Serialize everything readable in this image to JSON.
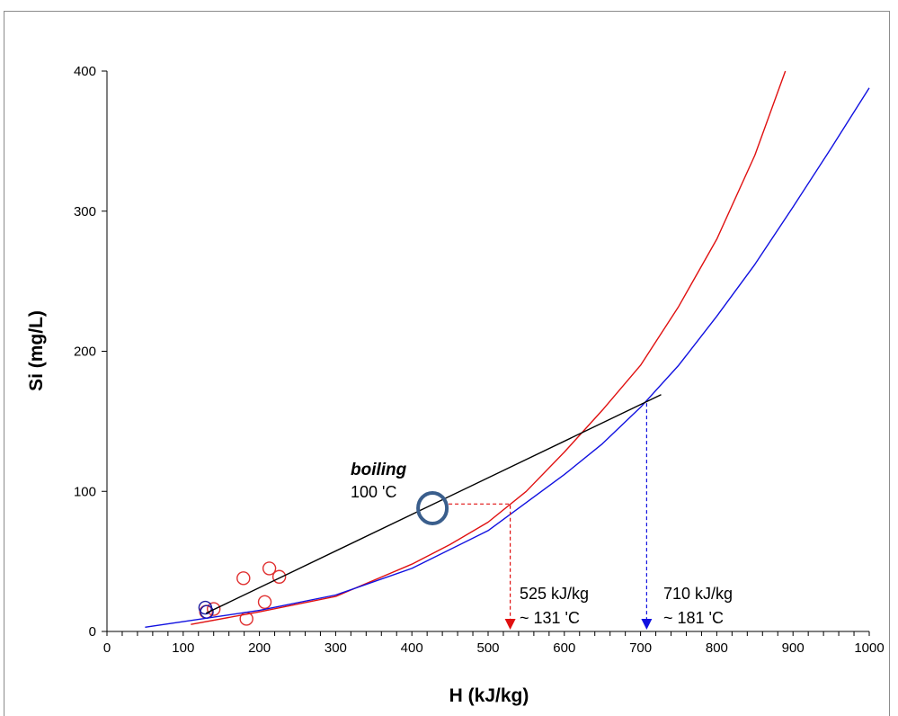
{
  "chart_data": {
    "type": "scatter",
    "xlabel": "H (kJ/kg)",
    "ylabel": "Si (mg/L)",
    "xlim": [
      0,
      1000
    ],
    "ylim": [
      0,
      400
    ],
    "xticks": [
      "0",
      "100",
      "200",
      "300",
      "400",
      "500",
      "600",
      "700",
      "800",
      "900",
      "1000"
    ],
    "yticks": [
      "0",
      "100",
      "200",
      "300",
      "400"
    ],
    "grid": false,
    "series": [
      {
        "kind": "points",
        "color": "#e03030",
        "points": [
          {
            "x": 130,
            "y": 14
          },
          {
            "x": 140,
            "y": 16
          },
          {
            "x": 179,
            "y": 38
          },
          {
            "x": 183,
            "y": 9
          },
          {
            "x": 207,
            "y": 21
          },
          {
            "x": 213,
            "y": 45
          },
          {
            "x": 226,
            "y": 39
          }
        ]
      },
      {
        "kind": "points",
        "color": "#1a1aa0",
        "points": [
          {
            "x": 129,
            "y": 17
          },
          {
            "x": 131,
            "y": 14
          }
        ]
      },
      {
        "kind": "line",
        "color": "#e01010",
        "points": [
          {
            "x": 110,
            "y": 5
          },
          {
            "x": 200,
            "y": 14
          },
          {
            "x": 300,
            "y": 25
          },
          {
            "x": 400,
            "y": 48
          },
          {
            "x": 450,
            "y": 62
          },
          {
            "x": 500,
            "y": 78
          },
          {
            "x": 550,
            "y": 100
          },
          {
            "x": 600,
            "y": 128
          },
          {
            "x": 650,
            "y": 158
          },
          {
            "x": 700,
            "y": 190
          },
          {
            "x": 750,
            "y": 232
          },
          {
            "x": 800,
            "y": 280
          },
          {
            "x": 850,
            "y": 340
          },
          {
            "x": 880,
            "y": 385
          },
          {
            "x": 890,
            "y": 400
          }
        ]
      },
      {
        "kind": "line",
        "color": "#1010e0",
        "points": [
          {
            "x": 50,
            "y": 3
          },
          {
            "x": 100,
            "y": 7
          },
          {
            "x": 200,
            "y": 15
          },
          {
            "x": 300,
            "y": 26
          },
          {
            "x": 400,
            "y": 45
          },
          {
            "x": 500,
            "y": 72
          },
          {
            "x": 600,
            "y": 112
          },
          {
            "x": 650,
            "y": 134
          },
          {
            "x": 700,
            "y": 160
          },
          {
            "x": 750,
            "y": 190
          },
          {
            "x": 800,
            "y": 225
          },
          {
            "x": 850,
            "y": 262
          },
          {
            "x": 900,
            "y": 303
          },
          {
            "x": 950,
            "y": 345
          },
          {
            "x": 1000,
            "y": 388
          }
        ]
      },
      {
        "kind": "line",
        "color": "#000000",
        "points": [
          {
            "x": 130,
            "y": 13
          },
          {
            "x": 727,
            "y": 169
          }
        ]
      }
    ],
    "annotations": {
      "boiling_label": "boiling",
      "boiling_temp": "100 'C",
      "boiling_marker": {
        "x": 427,
        "y": 88
      },
      "red_label_1": "525 kJ/kg",
      "red_label_2": "~ 131 'C",
      "red_drop": {
        "x_from": 427,
        "x_to": 529,
        "y": 91
      },
      "blue_label_1": "710 kJ/kg",
      "blue_label_2": "~ 181 'C",
      "blue_drop": {
        "x": 708,
        "y": 163
      }
    },
    "colors": {
      "red": "#e01010",
      "blue": "#1010e0",
      "marker_blue": "#3a5e8c",
      "black": "#000000"
    }
  }
}
